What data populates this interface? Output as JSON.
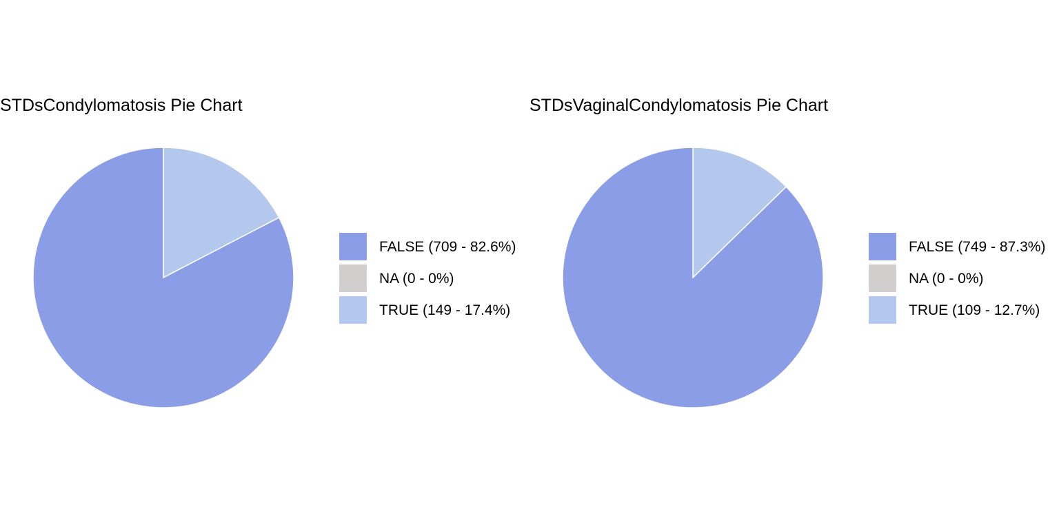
{
  "chart_data": [
    {
      "type": "pie",
      "title": "STDsCondylomatosis Pie Chart",
      "categories": [
        "FALSE",
        "NA",
        "TRUE"
      ],
      "values": [
        709,
        0,
        149
      ],
      "percentages": [
        82.6,
        0,
        17.4
      ],
      "colors": [
        "#8b9de6",
        "#d0cdcd",
        "#b3c8ec"
      ],
      "legend_labels": [
        "FALSE (709 - 82.6%)",
        "NA (0 - 0%)",
        "TRUE (149 - 17.4%)"
      ],
      "legend_position": "right"
    },
    {
      "type": "pie",
      "title": "STDsVaginalCondylomatosis Pie Chart",
      "categories": [
        "FALSE",
        "NA",
        "TRUE"
      ],
      "values": [
        749,
        0,
        109
      ],
      "percentages": [
        87.3,
        0,
        12.7
      ],
      "colors": [
        "#8b9de6",
        "#d0cdcd",
        "#b3c8ec"
      ],
      "legend_labels": [
        "FALSE (749 - 87.3%)",
        "NA (0 - 0%)",
        "TRUE (109 - 12.7%)"
      ],
      "legend_position": "right"
    }
  ]
}
